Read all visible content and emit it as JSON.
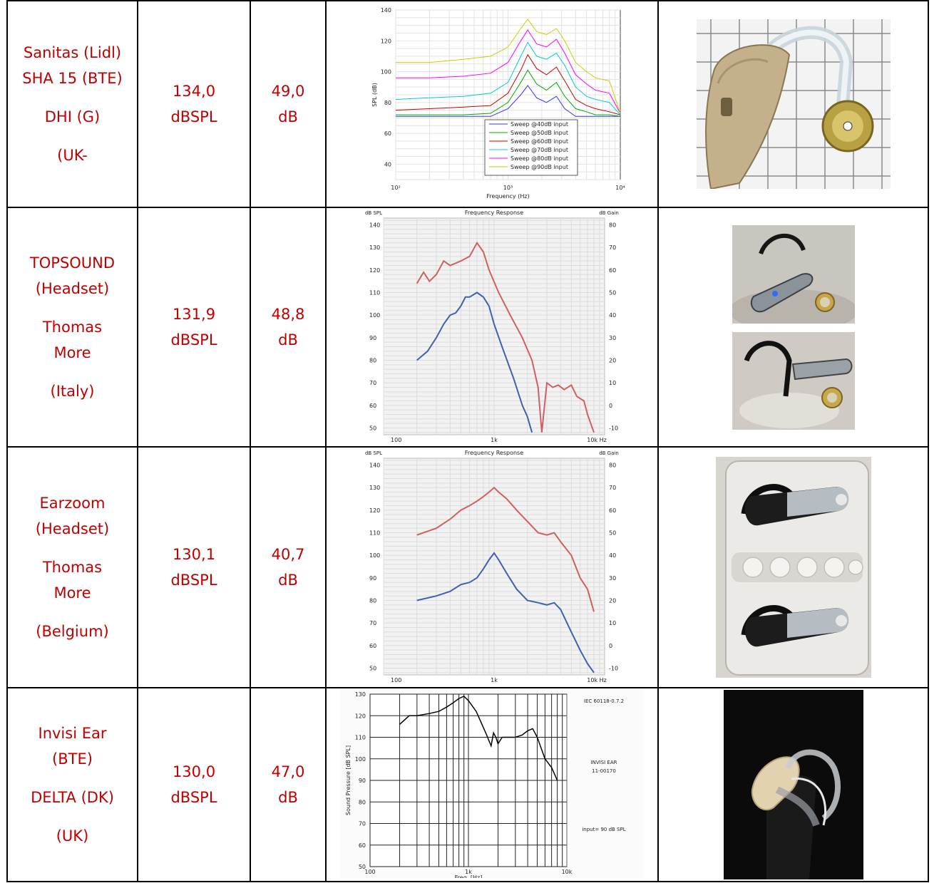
{
  "rows": [
    {
      "device": [
        "Sanitas (Lidl)",
        "SHA 15 (BTE)",
        "DHI (G)",
        "(UK-"
      ],
      "output": [
        "134,0",
        "dBSPL"
      ],
      "gain": [
        "49,0",
        "dB"
      ],
      "chart_data": {
        "type": "line",
        "xlabel": "Frequency (Hz)",
        "ylabel": "SPL (dB)",
        "xscale": "log",
        "xlim": [
          100,
          10000
        ],
        "ylim": [
          30,
          140
        ],
        "xticks": [
          "10²",
          "10³",
          "10⁴"
        ],
        "yticks": [
          40,
          60,
          80,
          100,
          120,
          140
        ],
        "legend_position": "bottom-center",
        "series": [
          {
            "name": "Sweep @40dB input",
            "color": "#3333ff",
            "x": [
              100,
              200,
              400,
              700,
              1000,
              1300,
              1500,
              1800,
              2200,
              2700,
              3200,
              4000,
              5000,
              6000,
              8000,
              10000
            ],
            "y": [
              71,
              71,
              71,
              71,
              76,
              85,
              91,
              83,
              80,
              84,
              76,
              71,
              71,
              71,
              71,
              71
            ]
          },
          {
            "name": "Sweep @50dB input",
            "color": "#00aa00",
            "x": [
              100,
              200,
              400,
              700,
              1000,
              1300,
              1500,
              1800,
              2200,
              2700,
              3200,
              4000,
              5000,
              6000,
              8000,
              10000
            ],
            "y": [
              72,
              72,
              72,
              73,
              80,
              93,
              101,
              92,
              88,
              93,
              84,
              76,
              74,
              72,
              72,
              71
            ]
          },
          {
            "name": "Sweep @60dB input",
            "color": "#cc0000",
            "x": [
              100,
              200,
              400,
              700,
              1000,
              1300,
              1500,
              1800,
              2200,
              2700,
              3200,
              4000,
              5000,
              6000,
              8000,
              10000
            ],
            "y": [
              75,
              76,
              77,
              78,
              86,
              101,
              111,
              102,
              98,
              103,
              94,
              82,
              78,
              76,
              74,
              72
            ]
          },
          {
            "name": "Sweep @70dB input",
            "color": "#00cccc",
            "x": [
              100,
              200,
              400,
              700,
              1000,
              1300,
              1500,
              1800,
              2200,
              2700,
              3200,
              4000,
              5000,
              6000,
              8000,
              10000
            ],
            "y": [
              82,
              83,
              84,
              86,
              93,
              110,
              119,
              110,
              108,
              112,
              104,
              90,
              84,
              82,
              80,
              72
            ]
          },
          {
            "name": "Sweep @80dB input",
            "color": "#ff00ff",
            "x": [
              100,
              200,
              400,
              700,
              1000,
              1300,
              1500,
              1800,
              2200,
              2700,
              3200,
              4000,
              5000,
              6000,
              8000,
              10000
            ],
            "y": [
              96,
              96,
              97,
              99,
              106,
              120,
              127,
              118,
              116,
              121,
              112,
              98,
              92,
              88,
              86,
              73
            ]
          },
          {
            "name": "Sweep @90dB input",
            "color": "#cccc00",
            "x": [
              100,
              200,
              400,
              700,
              1000,
              1300,
              1500,
              1800,
              2200,
              2700,
              3200,
              4000,
              5000,
              6000,
              8000,
              10000
            ],
            "y": [
              106,
              106,
              108,
              110,
              116,
              128,
              134,
              126,
              124,
              128,
              120,
              106,
              100,
              96,
              94,
              73
            ]
          }
        ]
      }
    },
    {
      "device": [
        "TOPSOUND",
        "(Headset)",
        "Thomas",
        "More",
        "(Italy)"
      ],
      "output": [
        "131,9",
        "dBSPL"
      ],
      "gain": [
        "48,8",
        "dB"
      ],
      "chart_data": {
        "type": "line",
        "title": "Frequency Response",
        "ylabel_left": "dB SPL",
        "ylabel_right": "dB Gain",
        "xscale": "log",
        "xlim": [
          100,
          10000
        ],
        "ylim": [
          47,
          143
        ],
        "xticks": [
          "100",
          "1k",
          "10k Hz"
        ],
        "yticks_left": [
          50,
          60,
          70,
          80,
          90,
          100,
          110,
          120,
          130,
          140
        ],
        "yticks_right": [
          -10,
          0,
          10,
          20,
          30,
          40,
          50,
          60,
          70,
          80
        ],
        "series": [
          {
            "color": "#d06060",
            "x": [
              200,
              230,
              260,
              300,
              350,
              400,
              450,
              500,
              600,
              700,
              800,
              900,
              1100,
              1400,
              1800,
              2200,
              2500,
              2700,
              3000,
              3400,
              3800,
              4300,
              5000,
              5600,
              6500,
              7000,
              8000
            ],
            "y": [
              114,
              119,
              115,
              118,
              124,
              122,
              123,
              124,
              126,
              132,
              128,
              120,
              110,
              100,
              90,
              80,
              68,
              48,
              70,
              68,
              69,
              67,
              69,
              64,
              62,
              56,
              48
            ]
          },
          {
            "color": "#4060b0",
            "x": [
              200,
              250,
              300,
              350,
              400,
              450,
              500,
              550,
              600,
              700,
              800,
              900,
              1000,
              1200,
              1500,
              1800,
              2000,
              2200
            ],
            "y": [
              80,
              84,
              90,
              96,
              100,
              101,
              104,
              108,
              108,
              110,
              108,
              104,
              96,
              85,
              72,
              60,
              55,
              48
            ]
          }
        ]
      }
    },
    {
      "device": [
        "Earzoom",
        "(Headset)",
        "Thomas",
        "More",
        "(Belgium)"
      ],
      "output": [
        "130,1",
        "dBSPL"
      ],
      "gain": [
        "40,7",
        "dB"
      ],
      "chart_data": {
        "type": "line",
        "title": "Frequency Response",
        "ylabel_left": "dB SPL",
        "ylabel_right": "dB Gain",
        "xscale": "log",
        "xlim": [
          100,
          10000
        ],
        "ylim": [
          47,
          143
        ],
        "xticks": [
          "100",
          "1k",
          "10k Hz"
        ],
        "yticks_left": [
          50,
          60,
          70,
          80,
          90,
          100,
          110,
          120,
          130,
          140
        ],
        "yticks_right": [
          -10,
          0,
          10,
          20,
          30,
          40,
          50,
          60,
          70,
          80
        ],
        "series": [
          {
            "color": "#d06060",
            "x": [
              200,
              300,
              400,
              500,
              600,
              700,
              800,
              900,
              1000,
              1100,
              1300,
              1600,
              2000,
              2500,
              3000,
              3500,
              4000,
              5000,
              6000,
              7000,
              8000
            ],
            "y": [
              109,
              112,
              116,
              120,
              122,
              124,
              126,
              128,
              130,
              128,
              125,
              120,
              115,
              110,
              109,
              110,
              106,
              100,
              90,
              85,
              75
            ]
          },
          {
            "color": "#4060b0",
            "x": [
              200,
              300,
              400,
              500,
              600,
              700,
              800,
              900,
              1000,
              1100,
              1300,
              1600,
              2000,
              2500,
              3000,
              3500,
              4000,
              5000,
              6000,
              7000,
              8000
            ],
            "y": [
              80,
              82,
              84,
              87,
              88,
              90,
              94,
              98,
              101,
              98,
              92,
              85,
              80,
              79,
              78,
              79,
              76,
              66,
              58,
              52,
              48
            ]
          }
        ]
      }
    },
    {
      "device": [
        "Invisi Ear",
        "(BTE)",
        "DELTA (DK)",
        "(UK)"
      ],
      "output": [
        "130,0",
        "dBSPL"
      ],
      "gain": [
        "47,0",
        "dB"
      ],
      "chart_data": {
        "type": "line",
        "xlabel": "Freq. [Hz]",
        "ylabel": "Sound Pressure [dB SPL]",
        "xscale": "log",
        "xlim": [
          100,
          10000
        ],
        "ylim": [
          50,
          130
        ],
        "xticks": [
          "100",
          "1k",
          "10k"
        ],
        "yticks": [
          50,
          60,
          70,
          80,
          90,
          100,
          110,
          120,
          130
        ],
        "annotations": [
          "IEC 60118-0.7.2",
          "INVISI EAR",
          "11-00170",
          "input= 90 dB SPL"
        ],
        "series": [
          {
            "color": "#000000",
            "x": [
              200,
              250,
              300,
              400,
              500,
              600,
              700,
              800,
              900,
              1000,
              1200,
              1500,
              1700,
              1800,
              1900,
              2000,
              2200,
              2500,
              3000,
              3500,
              4000,
              4500,
              5000,
              6000,
              7000,
              8000
            ],
            "y": [
              116,
              120,
              120,
              121,
              122,
              124,
              126,
              128,
              129,
              127,
              122,
              112,
              106,
              112,
              110,
              107,
              110,
              110,
              110,
              111,
              113,
              114,
              110,
              100,
              96,
              90
            ]
          }
        ]
      }
    }
  ]
}
